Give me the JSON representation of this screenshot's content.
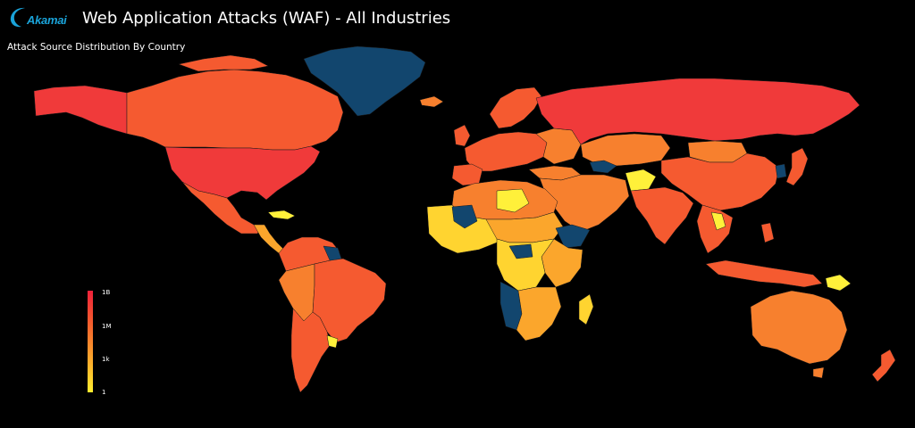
{
  "brand": {
    "logo_text": "Akamai",
    "logo_color": "#1aa3d9"
  },
  "title": "Web Application Attacks (WAF) - All Industries",
  "subtitle": "Attack Source Distribution By Country",
  "legend": {
    "labels": [
      "1B",
      "1M",
      "1k",
      "1"
    ],
    "gradient": [
      "#f0213a",
      "#f5602d",
      "#fba62c",
      "#ffed2e"
    ]
  },
  "colors": {
    "background": "#000000",
    "very_high": "#f03a3a",
    "high": "#f55a30",
    "mid_high": "#f7802e",
    "mid": "#fba62c",
    "low": "#ffd430",
    "very_low": "#fff03a",
    "no_data": "#12466e"
  },
  "map_data": [
    {
      "region": "United States",
      "level": "very_high"
    },
    {
      "region": "Canada",
      "level": "high"
    },
    {
      "region": "Alaska",
      "level": "very_high"
    },
    {
      "region": "Mexico",
      "level": "high"
    },
    {
      "region": "Central America",
      "level": "mid"
    },
    {
      "region": "Caribbean",
      "level": "very_low"
    },
    {
      "region": "Greenland",
      "level": "no_data"
    },
    {
      "region": "Brazil",
      "level": "high"
    },
    {
      "region": "Colombia / Venezuela",
      "level": "high"
    },
    {
      "region": "Peru / Bolivia",
      "level": "mid_high"
    },
    {
      "region": "Argentina / Chile",
      "level": "high"
    },
    {
      "region": "Guyana",
      "level": "no_data"
    },
    {
      "region": "Europe",
      "level": "high"
    },
    {
      "region": "Russia",
      "level": "very_high"
    },
    {
      "region": "Kazakhstan",
      "level": "mid_high"
    },
    {
      "region": "China",
      "level": "high"
    },
    {
      "region": "India",
      "level": "high"
    },
    {
      "region": "Middle East",
      "level": "mid_high"
    },
    {
      "region": "North Africa",
      "level": "mid"
    },
    {
      "region": "West Africa",
      "level": "low"
    },
    {
      "region": "Central Africa",
      "level": "low"
    },
    {
      "region": "Southern Africa",
      "level": "mid"
    },
    {
      "region": "Southeast Asia",
      "level": "high"
    },
    {
      "region": "Indonesia",
      "level": "high"
    },
    {
      "region": "Australia",
      "level": "mid_high"
    },
    {
      "region": "New Zealand",
      "level": "high"
    },
    {
      "region": "Madagascar",
      "level": "low"
    },
    {
      "region": "Japan",
      "level": "high"
    }
  ]
}
